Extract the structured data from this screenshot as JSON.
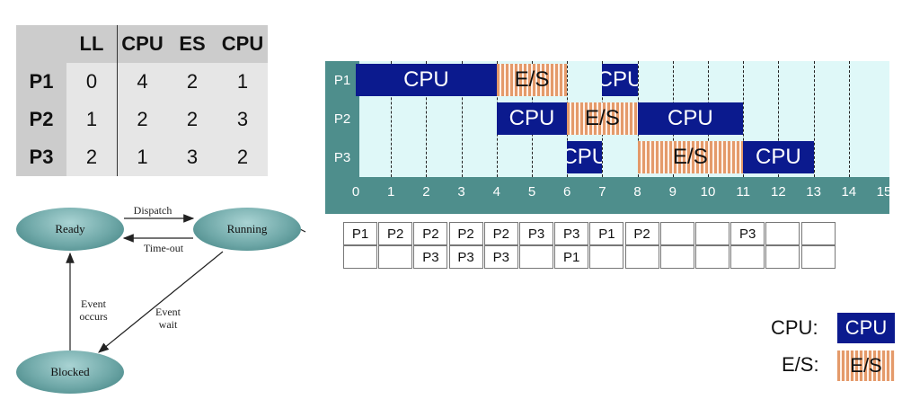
{
  "process_table": {
    "headers": [
      "",
      "LL",
      "CPU",
      "ES",
      "CPU"
    ],
    "rows": [
      [
        "P1",
        "0",
        "4",
        "2",
        "1"
      ],
      [
        "P2",
        "1",
        "2",
        "2",
        "3"
      ],
      [
        "P3",
        "2",
        "1",
        "3",
        "2"
      ]
    ]
  },
  "state_diagram": {
    "states": {
      "ready": "Ready",
      "running": "Running",
      "blocked": "Blocked"
    },
    "transitions": {
      "dispatch": "Dispatch",
      "timeout": "Time-out",
      "event_occurs": "Event occurs",
      "event_wait": "Event wait"
    }
  },
  "gantt": {
    "row_labels": [
      "P1",
      "P2",
      "P3"
    ],
    "ticks": [
      "0",
      "1",
      "2",
      "3",
      "4",
      "5",
      "6",
      "7",
      "8",
      "9",
      "10",
      "11",
      "12",
      "13",
      "14",
      "15"
    ],
    "blocks": [
      {
        "row": 0,
        "start": 0,
        "end": 4,
        "kind": "cpu",
        "label": "CPU"
      },
      {
        "row": 0,
        "start": 4,
        "end": 6,
        "kind": "es",
        "label": "E/S"
      },
      {
        "row": 0,
        "start": 7,
        "end": 8,
        "kind": "cpu",
        "label": "CPU"
      },
      {
        "row": 1,
        "start": 4,
        "end": 6,
        "kind": "cpu",
        "label": "CPU"
      },
      {
        "row": 1,
        "start": 6,
        "end": 8,
        "kind": "es",
        "label": "E/S"
      },
      {
        "row": 1,
        "start": 8,
        "end": 11,
        "kind": "cpu",
        "label": "CPU"
      },
      {
        "row": 2,
        "start": 6,
        "end": 7,
        "kind": "cpu",
        "label": "CPU"
      },
      {
        "row": 2,
        "start": 8,
        "end": 11,
        "kind": "es",
        "label": "E/S"
      },
      {
        "row": 2,
        "start": 11,
        "end": 13,
        "kind": "cpu",
        "label": "CPU"
      }
    ]
  },
  "ready_queue": {
    "row1": [
      "P1",
      "P2",
      "P2",
      "P2",
      "P2",
      "P3",
      "P3",
      "P1",
      "P2",
      "",
      "",
      "P3",
      "",
      ""
    ],
    "row2": [
      "",
      "",
      "P3",
      "P3",
      "P3",
      "",
      "P1",
      "",
      "",
      "",
      "",
      "",
      "",
      ""
    ]
  },
  "legend": {
    "cpu_label": "CPU:",
    "cpu_swatch": "CPU",
    "es_label": "E/S:",
    "es_swatch": "E/S"
  },
  "colors": {
    "cpu": "#0b1a8e",
    "es_stripe": "#e49a6a",
    "axis": "#4e8e8c",
    "row_bg": "#dff8f8",
    "table_header": "#cccccc",
    "table_row": "#e6e6e6"
  }
}
